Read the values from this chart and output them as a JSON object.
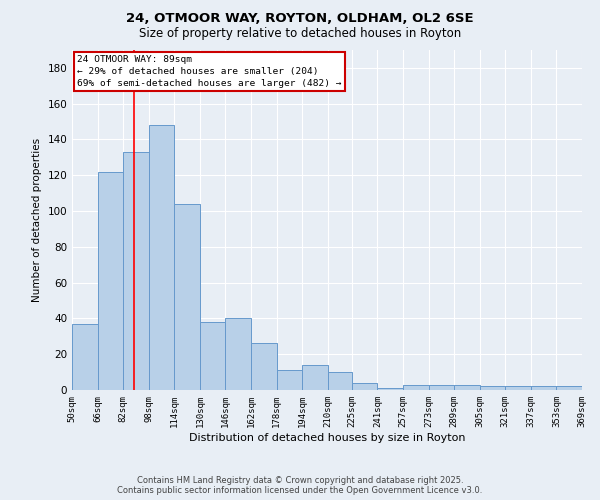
{
  "title_line1": "24, OTMOOR WAY, ROYTON, OLDHAM, OL2 6SE",
  "title_line2": "Size of property relative to detached houses in Royton",
  "xlabel": "Distribution of detached houses by size in Royton",
  "ylabel": "Number of detached properties",
  "bin_starts": [
    50,
    66,
    82,
    98,
    114,
    130,
    146,
    162,
    178,
    194,
    210,
    225,
    241,
    257,
    273,
    289,
    305,
    321,
    337,
    353
  ],
  "bin_ends": [
    66,
    82,
    98,
    114,
    130,
    146,
    162,
    178,
    194,
    210,
    225,
    241,
    257,
    273,
    289,
    305,
    321,
    337,
    353,
    369
  ],
  "bar_heights": [
    37,
    122,
    133,
    148,
    104,
    38,
    40,
    26,
    11,
    14,
    10,
    4,
    1,
    3,
    3,
    3,
    2,
    2,
    2,
    2
  ],
  "bar_color": "#b8d0e8",
  "bar_edge_color": "#6699cc",
  "red_line_x": 89,
  "ylim": [
    0,
    190
  ],
  "yticks": [
    0,
    20,
    40,
    60,
    80,
    100,
    120,
    140,
    160,
    180
  ],
  "annotation_title": "24 OTMOOR WAY: 89sqm",
  "annotation_line1": "← 29% of detached houses are smaller (204)",
  "annotation_line2": "69% of semi-detached houses are larger (482) →",
  "annotation_box_color": "#ffffff",
  "annotation_box_edge": "#cc0000",
  "footer_line1": "Contains HM Land Registry data © Crown copyright and database right 2025.",
  "footer_line2": "Contains public sector information licensed under the Open Government Licence v3.0.",
  "background_color": "#e8eef5",
  "grid_color": "#ffffff"
}
